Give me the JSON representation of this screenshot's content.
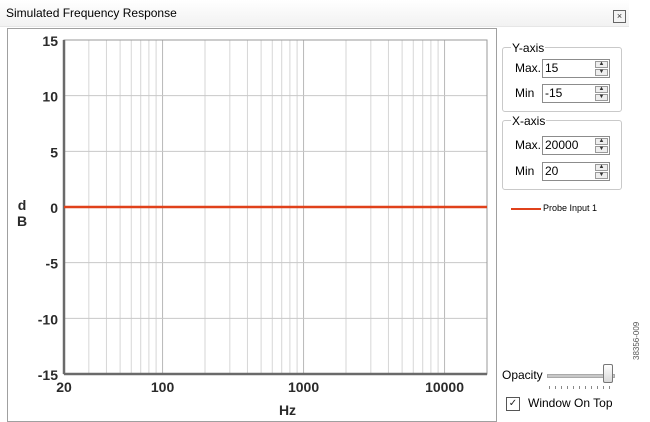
{
  "window": {
    "title": "Simulated Frequency Response",
    "close_icon": "×"
  },
  "chart_data": {
    "type": "line",
    "xscale": "log",
    "xlim": [
      20,
      20000
    ],
    "ylim": [
      -15,
      15
    ],
    "x_ticks": [
      20,
      100,
      1000,
      10000
    ],
    "x_tick_labels": [
      "20",
      "100",
      "1000",
      "10000"
    ],
    "y_ticks": [
      15,
      10,
      5,
      0,
      -5,
      -10,
      -15
    ],
    "y_tick_labels": [
      "15",
      "10",
      "5",
      "0",
      "-5",
      "-10",
      "-15"
    ],
    "xlabel": "Hz",
    "ylabel": "dB",
    "grid": true,
    "series": [
      {
        "name": "Probe Input 1",
        "color": "#e0411b",
        "x": [
          20,
          20000
        ],
        "y": [
          0,
          0
        ]
      }
    ]
  },
  "yaxis_group": {
    "title": "Y-axis",
    "max_label": "Max.",
    "max_value": "15",
    "min_label": "Min",
    "min_value": "-15"
  },
  "xaxis_group": {
    "title": "X-axis",
    "max_label": "Max.",
    "max_value": "20000",
    "min_label": "Min",
    "min_value": "20"
  },
  "legend": {
    "label": "Probe Input 1",
    "color": "#e0411b"
  },
  "opacity": {
    "label": "Opacity",
    "value": 1.0
  },
  "window_on_top": {
    "label": "Window On Top",
    "checked": true,
    "check_glyph": "✓"
  },
  "side_code": "38356-009"
}
